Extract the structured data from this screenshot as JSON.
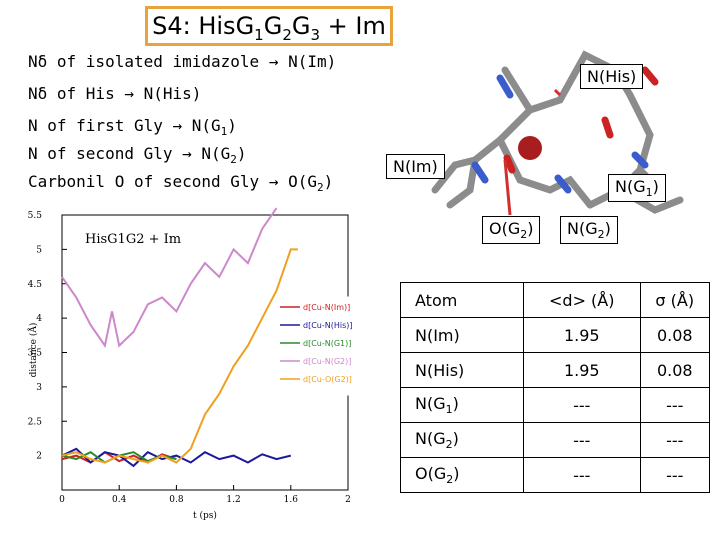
{
  "title": {
    "base": "S4: His",
    "g": "G",
    "sub1": "1",
    "sub2": "2",
    "sub3": "3",
    "tail": " + Im"
  },
  "legend_lines": {
    "l1": "Nδ of isolated imidazole → N(Im)",
    "l2": "Nδ of His → N(His)",
    "l3a": "N of first Gly → N(G",
    "l3s": "1",
    "l3b": ")",
    "l4a": "N of second Gly → N(G",
    "l4s": "2",
    "l4b": ")",
    "l5a": "Carbonil O of second Gly → O(G",
    "l5s": "2",
    "l5b": ")"
  },
  "callouts": {
    "nhis": "N(His)",
    "nim": "N(Im)",
    "ng1_a": "N(G",
    "ng1_s": "1",
    "ng1_b": ")",
    "og2_a": "O(G",
    "og2_s": "2",
    "og2_b": ")",
    "ng2_a": "N(G",
    "ng2_s": "2",
    "ng2_b": ")"
  },
  "chart_data": {
    "type": "line",
    "title": "HisG1G2 + Im",
    "xlabel": "t (ps)",
    "ylabel": "distance (Å)",
    "xlim": [
      0,
      2
    ],
    "ylim": [
      1.5,
      5.5
    ],
    "xticks": [
      "0",
      "0.4",
      "0.8",
      "1.2",
      "1.6",
      "2"
    ],
    "yticks": [
      "5.5",
      "5",
      "4.5",
      "4",
      "3.5",
      "3",
      "2.5",
      "2"
    ],
    "legend_position": "right",
    "series": [
      {
        "name": "d[Cu-N(Im)]",
        "color": "#cc2222",
        "x": [
          0,
          0.1,
          0.2,
          0.3,
          0.4,
          0.5,
          0.6,
          0.7,
          0.8
        ],
        "y": [
          1.95,
          2.0,
          1.9,
          2.05,
          1.92,
          2.0,
          1.9,
          2.02,
          1.95
        ]
      },
      {
        "name": "d[Cu-N(His)]",
        "color": "#1a1a9a",
        "x": [
          0,
          0.1,
          0.2,
          0.3,
          0.4,
          0.5,
          0.6,
          0.7,
          0.8,
          0.9,
          1.0,
          1.1,
          1.2,
          1.3,
          1.4,
          1.5,
          1.6
        ],
        "y": [
          2.0,
          2.1,
          1.9,
          2.05,
          2.0,
          1.85,
          2.05,
          1.95,
          2.0,
          1.9,
          2.05,
          1.95,
          2.0,
          1.9,
          2.02,
          1.95,
          2.0
        ]
      },
      {
        "name": "d[Cu-N(G1)]",
        "color": "#2a8a2a",
        "x": [
          0,
          0.1,
          0.2,
          0.3,
          0.4,
          0.5,
          0.6,
          0.7,
          0.8
        ],
        "y": [
          2.0,
          1.95,
          2.05,
          1.9,
          2.0,
          2.05,
          1.92,
          2.0,
          1.95
        ]
      },
      {
        "name": "d[Cu-N(G2)]",
        "color": "#cc88cc",
        "x": [
          0,
          0.1,
          0.2,
          0.3,
          0.35,
          0.4,
          0.5,
          0.6,
          0.7,
          0.8,
          0.9,
          1.0,
          1.1,
          1.2,
          1.3,
          1.4,
          1.5
        ],
        "y": [
          4.6,
          4.3,
          3.9,
          3.6,
          4.1,
          3.6,
          3.8,
          4.2,
          4.3,
          4.1,
          4.5,
          4.8,
          4.6,
          5.0,
          4.8,
          5.3,
          5.6
        ]
      },
      {
        "name": "d[Cu-O(G2)]",
        "color": "#f0a020",
        "x": [
          0,
          0.1,
          0.2,
          0.3,
          0.4,
          0.5,
          0.6,
          0.7,
          0.8,
          0.9,
          1.0,
          1.1,
          1.2,
          1.3,
          1.4,
          1.5,
          1.6,
          1.65
        ],
        "y": [
          2.0,
          2.05,
          1.95,
          1.9,
          2.0,
          1.95,
          1.9,
          2.0,
          1.9,
          2.1,
          2.6,
          2.9,
          3.3,
          3.6,
          4.0,
          4.4,
          5.0,
          5.0
        ]
      }
    ]
  },
  "table": {
    "headers": {
      "atom": "Atom",
      "d": "<d> (Å)",
      "s": "σ (Å)"
    },
    "rows": [
      {
        "atom": "N(Im)",
        "atom_sub": "",
        "atom_tail": "",
        "d": "1.95",
        "s": "0.08"
      },
      {
        "atom": "N(His)",
        "atom_sub": "",
        "atom_tail": "",
        "d": "1.95",
        "s": "0.08"
      },
      {
        "atom": "N(G",
        "atom_sub": "1",
        "atom_tail": ")",
        "d": "---",
        "s": "---"
      },
      {
        "atom": "N(G",
        "atom_sub": "2",
        "atom_tail": ")",
        "d": "---",
        "s": "---"
      },
      {
        "atom": "O(G",
        "atom_sub": "2",
        "atom_tail": ")",
        "d": "---",
        "s": "---"
      }
    ]
  }
}
